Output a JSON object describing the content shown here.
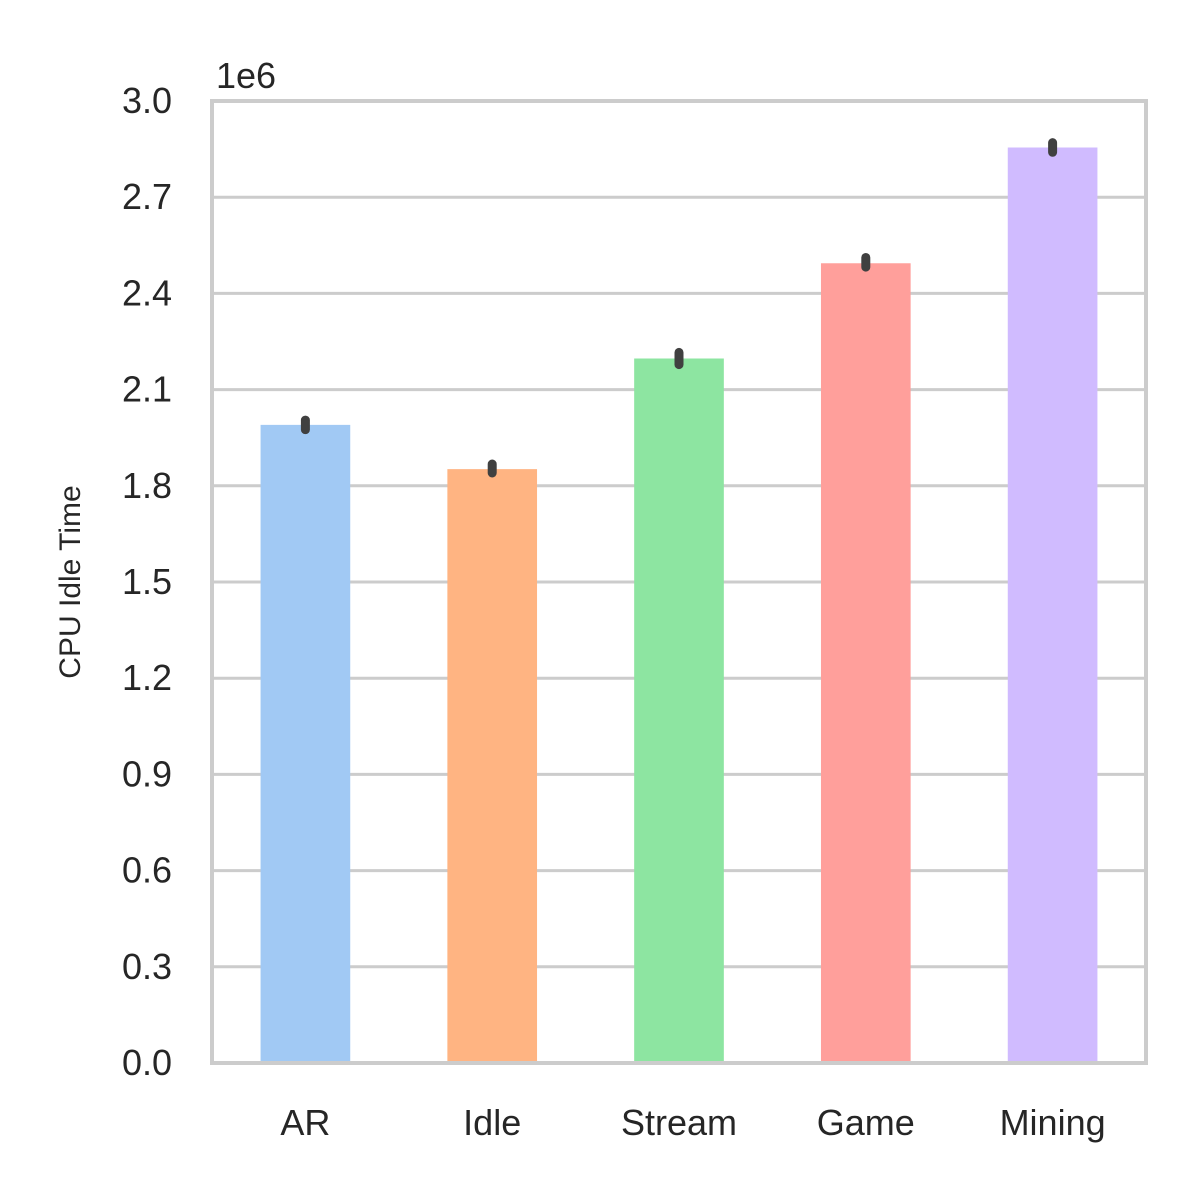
{
  "chart_data": {
    "type": "bar",
    "categories": [
      "AR",
      "Idle",
      "Stream",
      "Game",
      "Mining"
    ],
    "values": [
      1990000,
      1852000,
      2197000,
      2494000,
      2855000
    ],
    "errors": [
      [
        1975000,
        2005000
      ],
      [
        1840000,
        1868000
      ],
      [
        2178000,
        2216000
      ],
      [
        2482000,
        2512000
      ],
      [
        2840000,
        2870000
      ]
    ],
    "colors": [
      "#a1c9f4",
      "#ffb482",
      "#8de5a1",
      "#ff9f9b",
      "#d0bbff"
    ],
    "error_color": "#404040",
    "ylabel": "CPU Idle Time",
    "xlabel": "",
    "offset_label": "1e6",
    "yticks": [
      "0.0",
      "0.3",
      "0.6",
      "0.9",
      "1.2",
      "1.5",
      "1.8",
      "2.1",
      "2.4",
      "2.7",
      "3.0"
    ],
    "ylim": [
      0,
      3000000
    ],
    "grid": true
  }
}
